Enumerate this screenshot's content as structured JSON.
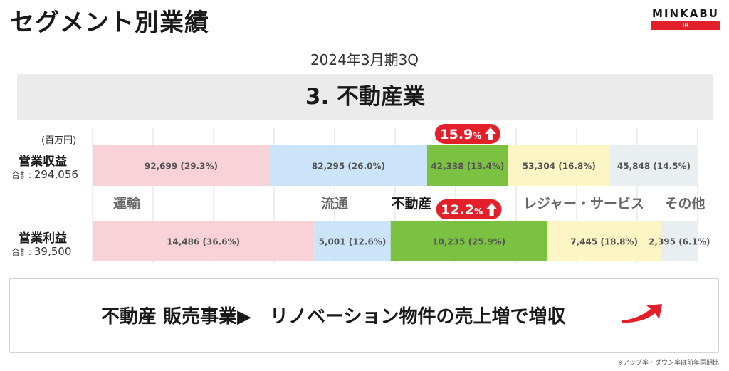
{
  "header": {
    "title": "セグメント別業績",
    "logo_text": "MINKABU",
    "logo_sub": "IR"
  },
  "period": "2024年3月期3Q",
  "banner_title": "3. 不動産業",
  "unit": "(百万円)",
  "rows": [
    {
      "label": "営業収益",
      "total_prefix": "合計:",
      "total_value": "294,056"
    },
    {
      "label": "営業利益",
      "total_prefix": "合計:",
      "total_value": "39,500"
    }
  ],
  "footer": {
    "message": "不動産 販売事業▶　リノベーション物件の売上増で増収",
    "note": "※アップ率・ダウン率は前年同期比"
  },
  "colors": {
    "運輸": "#f9d2d8",
    "流通": "#cce4fa",
    "不動産": "#7cc242",
    "レジャー・サービス": "#fbf6c4",
    "その他": "#e9eff1",
    "badge": "#e3202a"
  },
  "chart_data": {
    "type": "bar",
    "stacked": "100%",
    "orientation": "horizontal",
    "categories": [
      "営業収益",
      "営業利益"
    ],
    "series": [
      {
        "name": "運輸",
        "values": [
          92699,
          14486
        ],
        "labels": [
          "92,699 (29.3%)",
          "14,486 (36.6%)"
        ]
      },
      {
        "name": "流通",
        "values": [
          82295,
          5001
        ],
        "labels": [
          "82,295 (26.0%)",
          "5,001 (12.6%)"
        ]
      },
      {
        "name": "不動産",
        "values": [
          42338,
          10235
        ],
        "labels": [
          "42,338 (13.4%)",
          "10,235 (25.9%)"
        ]
      },
      {
        "name": "レジャー・サービス",
        "values": [
          53304,
          7445
        ],
        "labels": [
          "53,304 (16.8%)",
          "7,445 (18.8%)"
        ]
      },
      {
        "name": "その他",
        "values": [
          45848,
          2395
        ],
        "labels": [
          "45,848 (14.5%)",
          "2,395 (6.1%)"
        ]
      }
    ],
    "highlight_series": "不動産",
    "badges": [
      {
        "row": "営業収益",
        "text": "15.9",
        "suffix": "%",
        "direction": "up"
      },
      {
        "row": "営業利益",
        "text": "12.2",
        "suffix": "%",
        "direction": "up"
      }
    ],
    "grid": true
  }
}
